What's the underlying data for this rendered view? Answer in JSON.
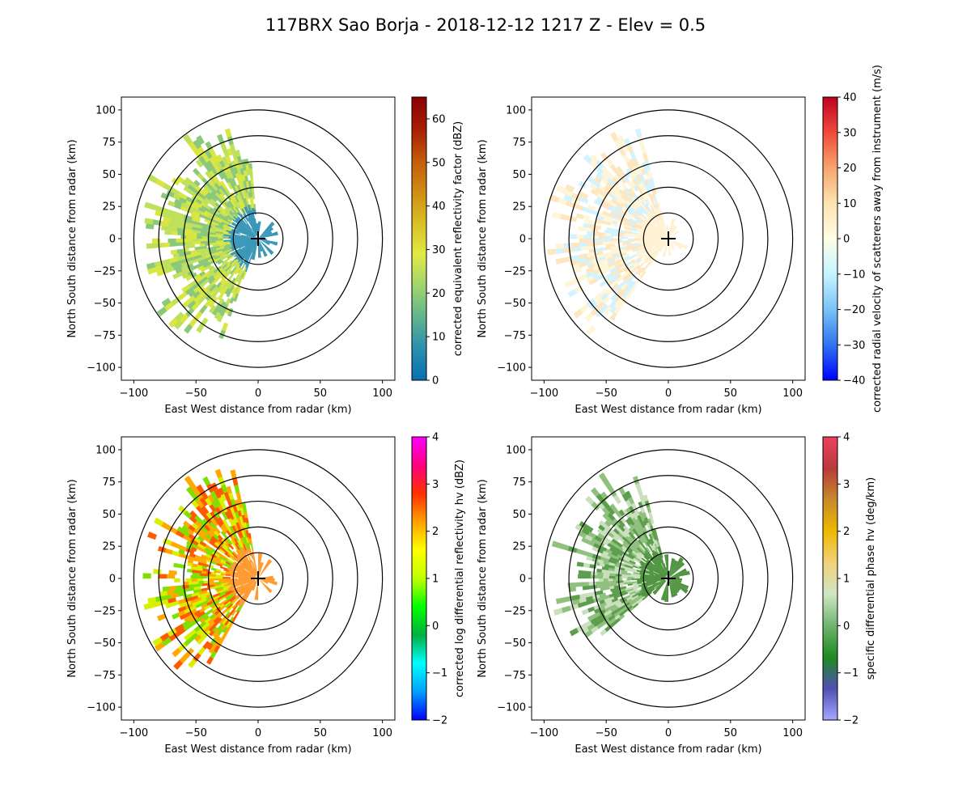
{
  "title": "117BRX Sao Borja - 2018-12-12 1217 Z -  Elev = 0.5",
  "chart_data": [
    {
      "type": "heatmap",
      "field": "reflectivity",
      "xlabel": "East West distance from radar (km)",
      "ylabel": "North South distance from radar (km)",
      "xlim": [
        -110,
        110
      ],
      "ylim": [
        -110,
        110
      ],
      "xticks": [
        "−100",
        "−50",
        "0",
        "50",
        "100"
      ],
      "yticks": [
        "100",
        "75",
        "50",
        "25",
        "0",
        "−25",
        "−50",
        "−75",
        "−100"
      ],
      "range_rings_km": [
        20,
        40,
        60,
        80,
        100
      ],
      "colorbar": {
        "label": "corrected equivalent reflectivity factor (dBZ)",
        "min": 0,
        "max": 65,
        "ticks": [
          "60",
          "50",
          "40",
          "30",
          "20",
          "10",
          "0"
        ],
        "tick_values": [
          60,
          50,
          40,
          30,
          20,
          10,
          0
        ],
        "colors": [
          "#0570b0",
          "#2a8fb0",
          "#5fb48d",
          "#9fd56e",
          "#e0ea45",
          "#d9be25",
          "#d08b12",
          "#c25a0a",
          "#a81d03",
          "#8a0000"
        ]
      },
      "echo": {
        "az_start": 200,
        "az_end": 355,
        "max_range": 98,
        "colors": [
          "#d9e640",
          "#bfe05a",
          "#8cc87a"
        ],
        "near_color": "#3a97b8"
      }
    },
    {
      "type": "heatmap",
      "field": "velocity",
      "xlabel": "East West distance from radar (km)",
      "ylabel": "North South distance from radar (km)",
      "xlim": [
        -110,
        110
      ],
      "ylim": [
        -110,
        110
      ],
      "xticks": [
        "−100",
        "−50",
        "0",
        "50",
        "100"
      ],
      "yticks": [
        "100",
        "75",
        "50",
        "25",
        "0",
        "−25",
        "−50",
        "−75",
        "−100"
      ],
      "range_rings_km": [
        20,
        40,
        60,
        80,
        100
      ],
      "colorbar": {
        "label": "corrected radial velocity of scatterers away from instrument (m/s)",
        "min": -40,
        "max": 40,
        "ticks": [
          "40",
          "30",
          "20",
          "10",
          "0",
          "−10",
          "−20",
          "−30",
          "−40"
        ],
        "tick_values": [
          40,
          30,
          20,
          10,
          0,
          -10,
          -20,
          -30,
          -40
        ],
        "colors": [
          "#0000ff",
          "#2f74f0",
          "#7ac3f7",
          "#c6f4ff",
          "#fffde6",
          "#fde3b0",
          "#f7a56c",
          "#ef4a3a",
          "#c00020"
        ]
      },
      "echo": {
        "az_start": 215,
        "az_end": 345,
        "max_range": 98,
        "colors": [
          "#d2f3ff",
          "#fff6d9",
          "#fde6c0"
        ],
        "near_color": "#fff1d2"
      }
    },
    {
      "type": "heatmap",
      "field": "differential_reflectivity",
      "xlabel": "East West distance from radar (km)",
      "ylabel": "North South distance from radar (km)",
      "xlim": [
        -110,
        110
      ],
      "ylim": [
        -110,
        110
      ],
      "xticks": [
        "−100",
        "−50",
        "0",
        "50",
        "100"
      ],
      "yticks": [
        "100",
        "75",
        "50",
        "25",
        "0",
        "−25",
        "−50",
        "−75",
        "−100"
      ],
      "range_rings_km": [
        20,
        40,
        60,
        80,
        100
      ],
      "colorbar": {
        "label": "corrected log differential reflectivity hv (dBZ)",
        "min": -2,
        "max": 4,
        "ticks": [
          "4",
          "3",
          "2",
          "1",
          "0",
          "−1",
          "−2"
        ],
        "tick_values": [
          4,
          3,
          2,
          1,
          0,
          -1,
          -2
        ],
        "colors": [
          "#0000ff",
          "#00a0ff",
          "#00ffff",
          "#00b040",
          "#00ff00",
          "#c0ff00",
          "#ffff00",
          "#ffa000",
          "#ff3000",
          "#ff0080",
          "#ff00ff"
        ]
      },
      "echo": {
        "az_start": 210,
        "az_end": 350,
        "max_range": 98,
        "colors": [
          "#ff5a00",
          "#ffa800",
          "#d8f000",
          "#7ee000"
        ],
        "near_color": "#ff9a30"
      }
    },
    {
      "type": "heatmap",
      "field": "specific_differential_phase",
      "xlabel": "East West distance from radar (km)",
      "ylabel": "North South distance from radar (km)",
      "xlim": [
        -110,
        110
      ],
      "ylim": [
        -110,
        110
      ],
      "xticks": [
        "−100",
        "−50",
        "0",
        "50",
        "100"
      ],
      "yticks": [
        "100",
        "75",
        "50",
        "25",
        "0",
        "−25",
        "−50",
        "−75",
        "−100"
      ],
      "range_rings_km": [
        20,
        40,
        60,
        80,
        100
      ],
      "colorbar": {
        "label": "specific differential phase hv (deg/km)",
        "min": -2,
        "max": 4,
        "ticks": [
          "4",
          "3",
          "2",
          "1",
          "0",
          "−1",
          "−2"
        ],
        "tick_values": [
          4,
          3,
          2,
          1,
          0,
          -1,
          -2
        ],
        "colors": [
          "#a7a7ff",
          "#5050b4",
          "#1f8a1f",
          "#6fb46f",
          "#cfe6c4",
          "#f1d27a",
          "#eeb800",
          "#c88a2a",
          "#b83b3b",
          "#ee4060"
        ]
      },
      "echo": {
        "az_start": 230,
        "az_end": 345,
        "max_range": 95,
        "colors": [
          "#5c9e4c",
          "#8fc07e",
          "#c9dfbd"
        ],
        "near_color": "#4f9440"
      }
    }
  ]
}
